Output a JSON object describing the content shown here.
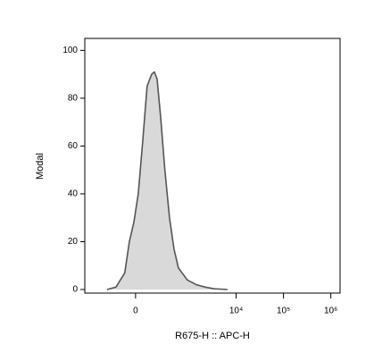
{
  "chart_data": {
    "type": "area",
    "x_label": "R675-H :: APC-H",
    "y_label": "Modal",
    "xscale": "biexponential",
    "x": [
      -282,
      -166,
      -82,
      -46,
      -13,
      20,
      53,
      89,
      130,
      157,
      187,
      232,
      294,
      376,
      474,
      594,
      927,
      1437,
      2220,
      3435,
      6585
    ],
    "values": [
      0,
      1,
      7,
      20,
      28,
      40,
      62,
      85,
      90,
      91,
      88,
      72,
      50,
      30,
      17,
      9,
      4,
      2,
      1,
      0.3,
      0
    ],
    "color": "#d9d9d9",
    "line_color": "#555555",
    "xlim": [
      -880,
      1570000
    ],
    "xticks": [
      0,
      {
        "value": 10000,
        "label": "10⁴"
      },
      {
        "value": 100000,
        "label": "10⁵"
      },
      {
        "value": 1000000,
        "label": "10⁶"
      }
    ],
    "ylim": [
      -1.5,
      105
    ],
    "yticks": [
      0,
      20,
      40,
      60,
      80,
      100
    ]
  }
}
